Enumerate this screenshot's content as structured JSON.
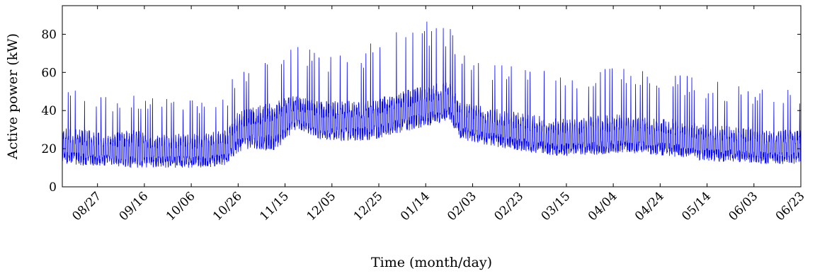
{
  "chart_data": {
    "type": "line",
    "xlabel": "Time (month/day)",
    "ylabel": "Active power (kW)",
    "ylim": [
      0,
      95
    ],
    "yticks": [
      0,
      20,
      40,
      60,
      80
    ],
    "xticks": [
      "08/27",
      "09/16",
      "10/06",
      "10/26",
      "11/15",
      "12/05",
      "12/25",
      "01/14",
      "02/03",
      "02/23",
      "03/15",
      "04/04",
      "04/24",
      "05/14",
      "06/03",
      "06/23"
    ],
    "x_range_days": [
      0,
      315
    ],
    "x_tick_days": [
      15,
      35,
      55,
      75,
      95,
      115,
      135,
      155,
      175,
      195,
      215,
      235,
      255,
      275,
      295,
      315
    ],
    "grid": false,
    "legend": "none",
    "series": [
      {
        "color": "#0000ff",
        "daily_profile": {
          "comment_free": true,
          "days": [
            0,
            10,
            20,
            30,
            40,
            50,
            60,
            70,
            75,
            80,
            90,
            100,
            110,
            120,
            130,
            140,
            150,
            160,
            165,
            170,
            180,
            190,
            200,
            210,
            220,
            230,
            240,
            250,
            260,
            270,
            280,
            290,
            300,
            310,
            315
          ],
          "base_min": [
            12,
            11,
            11,
            10,
            10,
            10,
            10,
            11,
            18,
            20,
            18,
            30,
            25,
            24,
            24,
            27,
            30,
            33,
            35,
            25,
            22,
            20,
            18,
            16,
            16,
            17,
            18,
            17,
            16,
            14,
            13,
            13,
            12,
            12,
            12
          ],
          "base_max": [
            32,
            30,
            28,
            30,
            28,
            28,
            28,
            30,
            40,
            42,
            45,
            48,
            45,
            45,
            46,
            48,
            52,
            55,
            55,
            45,
            42,
            40,
            38,
            36,
            36,
            38,
            38,
            36,
            36,
            34,
            32,
            32,
            30,
            30,
            30
          ],
          "peak": [
            56,
            50,
            48,
            48,
            50,
            48,
            47,
            50,
            65,
            62,
            70,
            80,
            72,
            72,
            75,
            80,
            85,
            89,
            85,
            70,
            66,
            64,
            62,
            60,
            60,
            64,
            64,
            62,
            60,
            58,
            55,
            54,
            52,
            53,
            53
          ]
        }
      }
    ]
  }
}
